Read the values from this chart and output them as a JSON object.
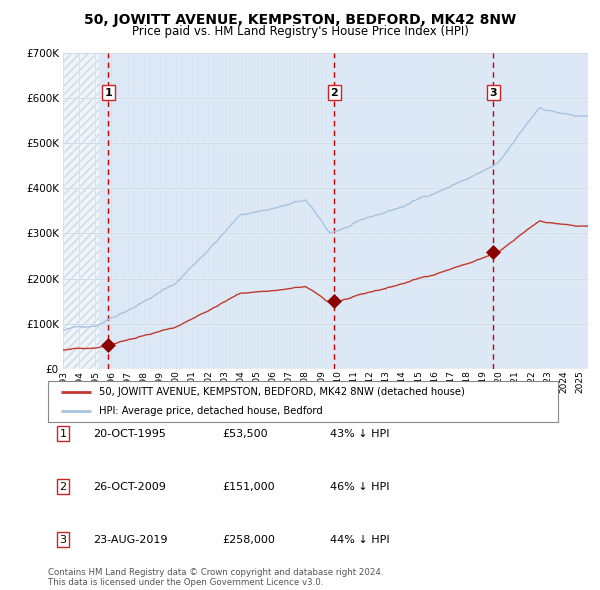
{
  "title": "50, JOWITT AVENUE, KEMPSTON, BEDFORD, MK42 8NW",
  "subtitle": "Price paid vs. HM Land Registry's House Price Index (HPI)",
  "ylim": [
    0,
    700000
  ],
  "yticks": [
    0,
    100000,
    200000,
    300000,
    400000,
    500000,
    600000,
    700000
  ],
  "hpi_color": "#a8c4e0",
  "price_color": "#c0392b",
  "marker_color": "#8b0000",
  "vline_color": "#cc0000",
  "grid_color": "#c5d5e5",
  "bg_color": "#dce8f5",
  "hatch_color": "#b0c0d0",
  "sale1_date": "20-OCT-1995",
  "sale1_price": 53500,
  "sale1_label": "43% ↓ HPI",
  "sale1_year": 1995.8,
  "sale2_date": "26-OCT-2009",
  "sale2_price": 151000,
  "sale2_label": "46% ↓ HPI",
  "sale2_year": 2009.8,
  "sale3_date": "23-AUG-2019",
  "sale3_price": 258000,
  "sale3_label": "44% ↓ HPI",
  "sale3_year": 2019.64,
  "footer": "Contains HM Land Registry data © Crown copyright and database right 2024.\nThis data is licensed under the Open Government Licence v3.0.",
  "legend1": "50, JOWITT AVENUE, KEMPSTON, BEDFORD, MK42 8NW (detached house)",
  "legend2": "HPI: Average price, detached house, Bedford",
  "xmin": 1993.0,
  "xmax": 2025.5
}
